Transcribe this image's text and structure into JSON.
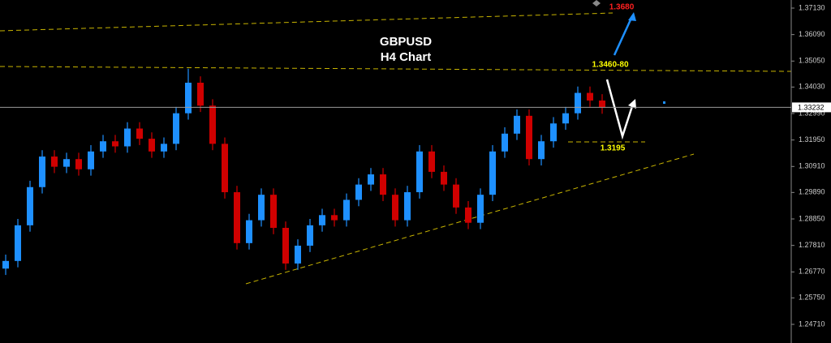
{
  "chart_data": {
    "type": "candlestick",
    "title": "GBPUSD",
    "subtitle": "H4 Chart",
    "annotations": [
      "1.3680",
      "1.3460-80",
      "1.3195"
    ],
    "ylim": [
      1.23978,
      1.37448
    ],
    "yticks": [
      {
        "value": 1.3713,
        "label": "1.37130"
      },
      {
        "value": 1.3609,
        "label": "1.36090"
      },
      {
        "value": 1.3505,
        "label": "1.35050"
      },
      {
        "value": 1.3403,
        "label": "1.34030"
      },
      {
        "value": 1.3299,
        "label": "1.32990"
      },
      {
        "value": 1.3195,
        "label": "1.31950"
      },
      {
        "value": 1.3091,
        "label": "1.30910"
      },
      {
        "value": 1.2989,
        "label": "1.29890"
      },
      {
        "value": 1.2885,
        "label": "1.28850"
      },
      {
        "value": 1.2781,
        "label": "1.27810"
      },
      {
        "value": 1.2677,
        "label": "1.26770"
      },
      {
        "value": 1.2575,
        "label": "1.25750"
      },
      {
        "value": 1.2471,
        "label": "1.24710"
      }
    ],
    "current_price": 1.33232,
    "up_color": "#1e90ff",
    "down_color": "#d00000",
    "open": [
      1.269,
      1.272,
      1.286,
      1.301,
      1.313,
      1.309,
      1.312,
      1.308,
      1.315,
      1.319,
      1.317,
      1.324,
      1.32,
      1.315,
      1.318,
      1.33,
      1.342,
      1.333,
      1.318,
      1.299,
      1.279,
      1.288,
      1.298,
      1.285,
      1.271,
      1.278,
      1.286,
      1.29,
      1.288,
      1.296,
      1.302,
      1.306,
      1.298,
      1.288,
      1.299,
      1.315,
      1.307,
      1.302,
      1.293,
      1.287,
      1.298,
      1.315,
      1.322,
      1.329,
      1.312,
      1.319,
      1.326,
      1.33,
      1.338,
      1.335
    ],
    "high": [
      1.2745,
      1.2885,
      1.3035,
      1.3155,
      1.3155,
      1.3145,
      1.3145,
      1.3175,
      1.3215,
      1.3215,
      1.3265,
      1.3265,
      1.3225,
      1.3205,
      1.3325,
      1.3475,
      1.3445,
      1.3355,
      1.3205,
      1.3015,
      1.2905,
      1.3005,
      1.3005,
      1.2875,
      1.2805,
      1.2885,
      1.2925,
      1.2925,
      1.2985,
      1.3045,
      1.3085,
      1.3085,
      1.3005,
      1.3015,
      1.3175,
      1.3175,
      1.3095,
      1.3045,
      1.2955,
      1.3005,
      1.3175,
      1.3245,
      1.3315,
      1.3315,
      1.3215,
      1.3285,
      1.3325,
      1.3405,
      1.3405,
      1.3375
    ],
    "low": [
      1.2665,
      1.2695,
      1.2835,
      1.2985,
      1.3065,
      1.3065,
      1.3055,
      1.3055,
      1.3125,
      1.3145,
      1.3145,
      1.3175,
      1.3125,
      1.3125,
      1.3155,
      1.3275,
      1.3305,
      1.3155,
      1.2965,
      1.2765,
      1.2765,
      1.2855,
      1.2825,
      1.2685,
      1.2685,
      1.2755,
      1.2835,
      1.2855,
      1.2855,
      1.2935,
      1.2995,
      1.2955,
      1.2855,
      1.2855,
      1.2965,
      1.3045,
      1.2995,
      1.2905,
      1.2845,
      1.2845,
      1.2955,
      1.3125,
      1.3195,
      1.3095,
      1.3095,
      1.3165,
      1.3235,
      1.3275,
      1.3325,
      1.3298
    ],
    "close": [
      1.272,
      1.286,
      1.301,
      1.313,
      1.309,
      1.312,
      1.308,
      1.315,
      1.319,
      1.317,
      1.324,
      1.32,
      1.315,
      1.318,
      1.33,
      1.342,
      1.333,
      1.318,
      1.299,
      1.279,
      1.288,
      1.298,
      1.285,
      1.271,
      1.278,
      1.286,
      1.29,
      1.288,
      1.296,
      1.302,
      1.306,
      1.298,
      1.288,
      1.299,
      1.315,
      1.307,
      1.302,
      1.293,
      1.287,
      1.298,
      1.315,
      1.322,
      1.329,
      1.312,
      1.319,
      1.326,
      1.33,
      1.338,
      1.335,
      1.3323
    ]
  }
}
